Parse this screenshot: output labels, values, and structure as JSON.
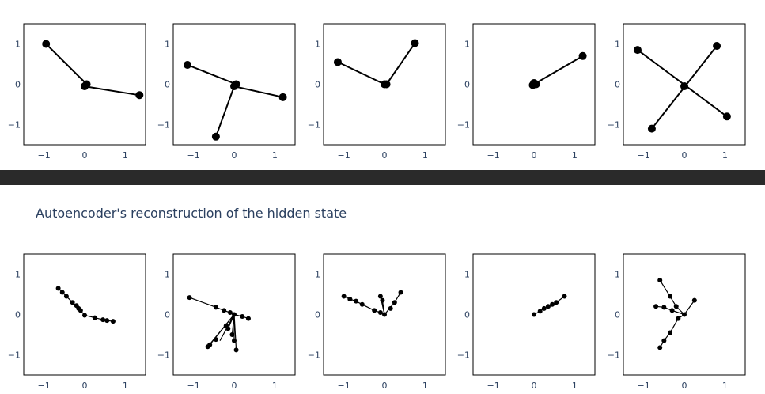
{
  "section_title": "Autoencoder's reconstruction of the hidden state",
  "colors": {
    "axis_text": "#2a3f5f",
    "marker": "#000000",
    "divider": "#2a2a2a"
  },
  "chart_data": [
    {
      "group": "top",
      "type": "scatter",
      "mode": "lines+markers",
      "xlim": [
        -1.5,
        1.5
      ],
      "ylim": [
        -1.5,
        1.5
      ],
      "xticks": [
        "−1",
        "0",
        "1"
      ],
      "yticks": [
        "1",
        "0",
        "−1"
      ],
      "tick_values": [
        -1,
        0,
        1
      ],
      "panels": [
        {
          "lines": [
            [
              [
                -0.95,
                1.0
              ],
              [
                0.05,
                0.0
              ]
            ],
            [
              [
                0.0,
                -0.05
              ],
              [
                1.35,
                -0.27
              ]
            ]
          ],
          "points": [
            [
              -0.95,
              1.0
            ],
            [
              0.05,
              0.0
            ],
            [
              0.0,
              -0.05
            ],
            [
              1.35,
              -0.27
            ]
          ]
        },
        {
          "lines": [
            [
              [
                -1.15,
                0.48
              ],
              [
                0.05,
                0.0
              ]
            ],
            [
              [
                0.0,
                -0.05
              ],
              [
                1.2,
                -0.32
              ]
            ],
            [
              [
                0.0,
                -0.05
              ],
              [
                -0.45,
                -1.3
              ]
            ]
          ],
          "points": [
            [
              -1.15,
              0.48
            ],
            [
              0.05,
              0.0
            ],
            [
              0.0,
              -0.05
            ],
            [
              1.2,
              -0.32
            ],
            [
              -0.45,
              -1.3
            ]
          ]
        },
        {
          "lines": [
            [
              [
                -1.15,
                0.55
              ],
              [
                0.0,
                0.0
              ]
            ],
            [
              [
                0.05,
                0.0
              ],
              [
                0.75,
                1.02
              ]
            ]
          ],
          "points": [
            [
              -1.15,
              0.55
            ],
            [
              0.0,
              0.0
            ],
            [
              0.05,
              0.0
            ],
            [
              0.75,
              1.02
            ]
          ]
        },
        {
          "lines": [
            [
              [
                0.0,
                0.0
              ],
              [
                1.2,
                0.7
              ]
            ]
          ],
          "points": [
            [
              -0.03,
              -0.02
            ],
            [
              0.0,
              0.03
            ],
            [
              0.05,
              0.0
            ],
            [
              1.2,
              0.7
            ]
          ]
        },
        {
          "lines": [
            [
              [
                -1.15,
                0.85
              ],
              [
                1.05,
                -0.8
              ]
            ],
            [
              [
                -0.8,
                -1.1
              ],
              [
                0.8,
                0.95
              ]
            ]
          ],
          "points": [
            [
              -1.15,
              0.85
            ],
            [
              1.05,
              -0.8
            ],
            [
              -0.8,
              -1.1
            ],
            [
              0.8,
              0.95
            ],
            [
              0.0,
              -0.05
            ]
          ]
        }
      ]
    },
    {
      "group": "bottom",
      "type": "scatter",
      "mode": "lines+markers",
      "xlim": [
        -1.5,
        1.5
      ],
      "ylim": [
        -1.5,
        1.5
      ],
      "xticks": [
        "−1",
        "0",
        "1"
      ],
      "yticks": [
        "1",
        "0",
        "−1"
      ],
      "tick_values": [
        -1,
        0,
        1
      ],
      "panels": [
        {
          "lines": [
            [
              [
                -0.65,
                0.65
              ],
              [
                -0.55,
                0.55
              ],
              [
                -0.45,
                0.45
              ],
              [
                -0.3,
                0.3
              ],
              [
                -0.2,
                0.22
              ],
              [
                -0.15,
                0.15
              ],
              [
                -0.1,
                0.1
              ],
              [
                0.0,
                -0.02
              ],
              [
                0.25,
                -0.08
              ],
              [
                0.45,
                -0.13
              ],
              [
                0.55,
                -0.15
              ],
              [
                0.7,
                -0.17
              ]
            ]
          ],
          "points": [
            [
              -0.65,
              0.65
            ],
            [
              -0.55,
              0.55
            ],
            [
              -0.45,
              0.45
            ],
            [
              -0.3,
              0.3
            ],
            [
              -0.2,
              0.22
            ],
            [
              -0.15,
              0.15
            ],
            [
              -0.1,
              0.1
            ],
            [
              0.0,
              -0.02
            ],
            [
              0.25,
              -0.08
            ],
            [
              0.45,
              -0.13
            ],
            [
              0.55,
              -0.15
            ],
            [
              0.7,
              -0.17
            ]
          ]
        },
        {
          "lines": [
            [
              [
                -1.1,
                0.42
              ],
              [
                -0.45,
                0.18
              ],
              [
                -0.25,
                0.1
              ],
              [
                -0.1,
                0.05
              ],
              [
                0.0,
                0.0
              ],
              [
                0.2,
                -0.05
              ],
              [
                0.35,
                -0.1
              ]
            ],
            [
              [
                0.0,
                0.0
              ],
              [
                -0.65,
                -0.8
              ]
            ],
            [
              [
                0.0,
                0.0
              ],
              [
                -0.6,
                -0.75
              ]
            ],
            [
              [
                0.0,
                0.0
              ],
              [
                -0.15,
                -0.35
              ]
            ],
            [
              [
                0.0,
                0.0
              ],
              [
                -0.35,
                -0.65
              ]
            ],
            [
              [
                0.0,
                0.0
              ],
              [
                -0.05,
                -0.5
              ]
            ],
            [
              [
                0.0,
                0.0
              ],
              [
                0.0,
                -0.65
              ]
            ],
            [
              [
                0.0,
                0.0
              ],
              [
                0.05,
                -0.88
              ]
            ]
          ],
          "points": [
            [
              -1.1,
              0.42
            ],
            [
              -0.45,
              0.18
            ],
            [
              -0.25,
              0.1
            ],
            [
              -0.1,
              0.05
            ],
            [
              0.0,
              0.0
            ],
            [
              0.2,
              -0.05
            ],
            [
              0.35,
              -0.1
            ],
            [
              -0.65,
              -0.8
            ],
            [
              -0.6,
              -0.75
            ],
            [
              -0.45,
              -0.62
            ],
            [
              -0.15,
              -0.35
            ],
            [
              -0.2,
              -0.28
            ],
            [
              -0.05,
              -0.5
            ],
            [
              0.0,
              -0.65
            ],
            [
              0.05,
              -0.88
            ]
          ]
        },
        {
          "lines": [
            [
              [
                -1.0,
                0.45
              ],
              [
                -0.85,
                0.38
              ],
              [
                -0.7,
                0.33
              ],
              [
                -0.55,
                0.25
              ],
              [
                -0.25,
                0.1
              ],
              [
                -0.1,
                0.05
              ],
              [
                0.0,
                0.0
              ],
              [
                0.25,
                0.3
              ],
              [
                0.4,
                0.55
              ]
            ],
            [
              [
                -0.1,
                0.45
              ],
              [
                0.0,
                0.0
              ]
            ],
            [
              [
                -0.05,
                0.35
              ],
              [
                0.0,
                0.0
              ]
            ]
          ],
          "points": [
            [
              -1.0,
              0.45
            ],
            [
              -0.85,
              0.38
            ],
            [
              -0.7,
              0.33
            ],
            [
              -0.55,
              0.25
            ],
            [
              -0.25,
              0.1
            ],
            [
              -0.1,
              0.05
            ],
            [
              0.0,
              0.0
            ],
            [
              0.15,
              0.15
            ],
            [
              0.25,
              0.3
            ],
            [
              0.4,
              0.55
            ],
            [
              -0.1,
              0.45
            ],
            [
              -0.05,
              0.35
            ]
          ]
        },
        {
          "lines": [
            [
              [
                0.0,
                0.0
              ],
              [
                0.15,
                0.08
              ],
              [
                0.25,
                0.15
              ],
              [
                0.35,
                0.2
              ],
              [
                0.45,
                0.25
              ],
              [
                0.55,
                0.3
              ],
              [
                0.75,
                0.45
              ]
            ]
          ],
          "points": [
            [
              0.0,
              0.0
            ],
            [
              0.15,
              0.08
            ],
            [
              0.25,
              0.15
            ],
            [
              0.35,
              0.2
            ],
            [
              0.45,
              0.25
            ],
            [
              0.55,
              0.3
            ],
            [
              0.75,
              0.45
            ]
          ]
        },
        {
          "lines": [
            [
              [
                -0.6,
                0.85
              ],
              [
                -0.35,
                0.45
              ],
              [
                -0.2,
                0.2
              ],
              [
                0.0,
                0.0
              ]
            ],
            [
              [
                -0.7,
                0.2
              ],
              [
                -0.5,
                0.18
              ],
              [
                -0.3,
                0.1
              ],
              [
                0.0,
                0.0
              ]
            ],
            [
              [
                0.0,
                0.0
              ],
              [
                0.25,
                0.35
              ]
            ],
            [
              [
                0.0,
                0.0
              ],
              [
                -0.15,
                -0.1
              ],
              [
                -0.35,
                -0.45
              ],
              [
                -0.5,
                -0.65
              ],
              [
                -0.6,
                -0.82
              ]
            ]
          ],
          "points": [
            [
              -0.6,
              0.85
            ],
            [
              -0.35,
              0.45
            ],
            [
              -0.2,
              0.2
            ],
            [
              -0.7,
              0.2
            ],
            [
              -0.5,
              0.18
            ],
            [
              -0.3,
              0.1
            ],
            [
              0.0,
              0.0
            ],
            [
              0.25,
              0.35
            ],
            [
              -0.15,
              -0.1
            ],
            [
              -0.35,
              -0.45
            ],
            [
              -0.5,
              -0.65
            ],
            [
              -0.6,
              -0.82
            ]
          ]
        }
      ]
    }
  ]
}
